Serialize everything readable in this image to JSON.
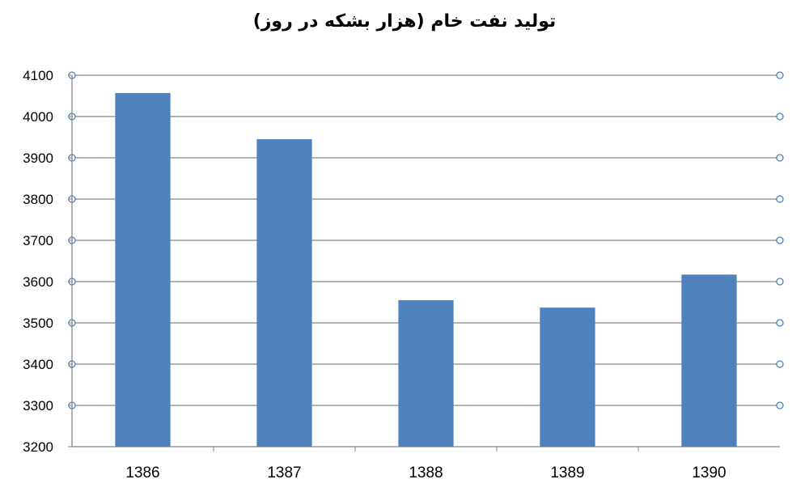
{
  "chart_data": {
    "type": "bar",
    "title": "تولید نفت خام (هزار بشکه در روز)",
    "xlabel": "",
    "ylabel": "",
    "categories": [
      "1386",
      "1387",
      "1388",
      "1389",
      "1390"
    ],
    "values": [
      4057,
      3945,
      3555,
      3537,
      3617
    ],
    "ylim": [
      3200,
      4100
    ],
    "yticks": [
      3200,
      3300,
      3400,
      3500,
      3600,
      3700,
      3800,
      3900,
      4000,
      4100
    ],
    "grid": true,
    "legend": "none",
    "bar_color": "#4f81bd",
    "grid_color": "#868686",
    "marker_color": "#4f81bd"
  }
}
